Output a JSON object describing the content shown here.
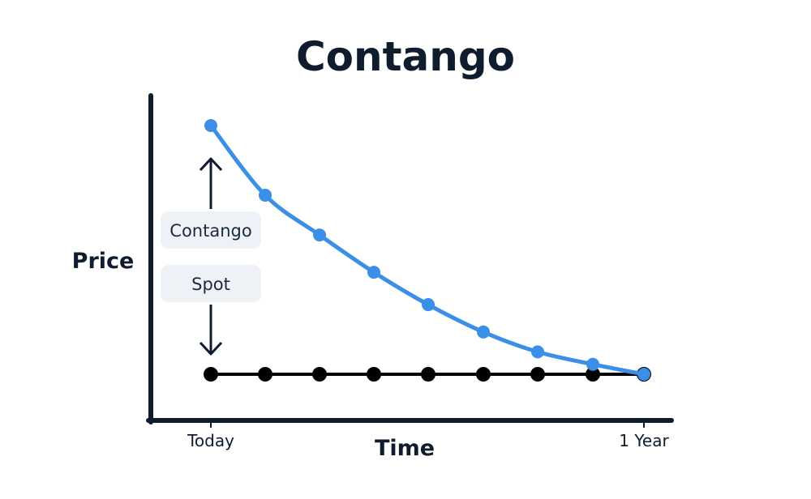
{
  "chart_data": {
    "type": "line",
    "title": "Contango",
    "xlabel": "Time",
    "ylabel": "Price",
    "x_tick_labels": [
      "Today",
      "1 Year"
    ],
    "x": [
      0,
      1,
      2,
      3,
      4,
      5,
      6,
      7,
      8
    ],
    "series": [
      {
        "values": [
          100,
          72,
          56,
          41,
          28,
          17,
          9,
          4,
          0
        ],
        "color": "#3b8fe6"
      },
      {
        "values": [
          0,
          0,
          0,
          0,
          0,
          0,
          0,
          0,
          0
        ],
        "color": "#000000"
      }
    ],
    "ylim": [
      0,
      100
    ],
    "grid": false,
    "annotations": {
      "upper": "Contango",
      "lower": "Spot"
    }
  }
}
